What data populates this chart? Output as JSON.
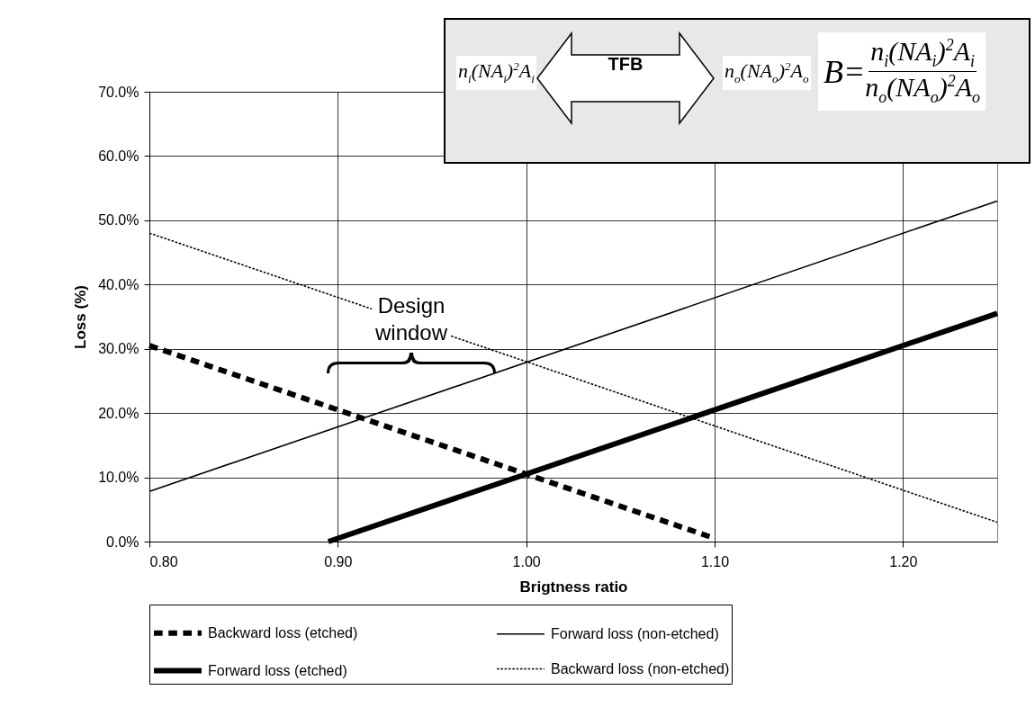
{
  "chart_data": {
    "type": "line",
    "xlabel": "Brigtness ratio",
    "ylabel": "Loss (%)",
    "xlim": [
      0.8,
      1.25
    ],
    "ylim": [
      0,
      70
    ],
    "xticks": [
      {
        "value": 0.8,
        "label": "0.80"
      },
      {
        "value": 0.9,
        "label": "0.90"
      },
      {
        "value": 1.0,
        "label": "1.00"
      },
      {
        "value": 1.1,
        "label": "1.10"
      },
      {
        "value": 1.2,
        "label": "1.20"
      }
    ],
    "yticks": [
      {
        "value": 0,
        "label": "0.0%"
      },
      {
        "value": 10,
        "label": "10.0%"
      },
      {
        "value": 20,
        "label": "20.0%"
      },
      {
        "value": 30,
        "label": "30.0%"
      },
      {
        "value": 40,
        "label": "40.0%"
      },
      {
        "value": 50,
        "label": "50.0%"
      },
      {
        "value": 60,
        "label": "60.0%"
      },
      {
        "value": 70,
        "label": "70.0%"
      }
    ],
    "grid": true,
    "legend": "bottom",
    "marker": "none",
    "series": [
      {
        "name": "Backward loss (etched)",
        "color": "#000000",
        "line_style": "dashed",
        "x": [
          0.8,
          1.1
        ],
        "values": [
          30.5,
          0.5
        ]
      },
      {
        "name": "Forward loss  (non-etched)",
        "color": "#000000",
        "line_style": "solid",
        "x": [
          0.8,
          1.25
        ],
        "values": [
          7.8,
          53
        ]
      },
      {
        "name": "Forward loss (etched)",
        "color": "#000000",
        "line_style": "solid",
        "x": [
          0.895,
          1.25
        ],
        "values": [
          0,
          35.5
        ]
      },
      {
        "name": "Backward loss (non-etched)",
        "color": "#000000",
        "line_style": "dashed",
        "x": [
          0.8,
          1.25
        ],
        "values": [
          48,
          3
        ]
      }
    ],
    "annotations": [
      "Design window",
      "n$_{i}$(NA$_{i}$)$^{2}$A$_{i}$",
      "TFB",
      "n$_{o}$(NA$_{o}$)$^{2}$A$_{o}$",
      "B=",
      "n$_{i}$(NA$_{i}$)$^{2}$A$_{i}$",
      "n$_{o}$(NA$_{o}$)$^{2}$A$_{o}$"
    ]
  }
}
